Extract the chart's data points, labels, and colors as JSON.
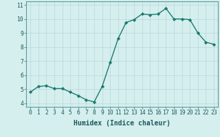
{
  "x": [
    0,
    1,
    2,
    3,
    4,
    5,
    6,
    7,
    8,
    9,
    10,
    11,
    12,
    13,
    14,
    15,
    16,
    17,
    18,
    19,
    20,
    21,
    22,
    23
  ],
  "y": [
    4.8,
    5.2,
    5.25,
    5.05,
    5.05,
    4.8,
    4.55,
    4.25,
    4.1,
    5.2,
    6.9,
    8.6,
    9.75,
    9.95,
    10.35,
    10.3,
    10.35,
    10.75,
    10.0,
    10.0,
    9.95,
    9.0,
    8.35,
    8.2
  ],
  "line_color": "#1a7a6e",
  "marker": "D",
  "marker_size": 2.2,
  "bg_color": "#d5eeee",
  "grid_color": "#b8d8d8",
  "xlabel": "Humidex (Indice chaleur)",
  "xlim": [
    -0.5,
    23.5
  ],
  "ylim": [
    3.75,
    11.25
  ],
  "yticks": [
    4,
    5,
    6,
    7,
    8,
    9,
    10,
    11
  ],
  "xticks": [
    0,
    1,
    2,
    3,
    4,
    5,
    6,
    7,
    8,
    9,
    10,
    11,
    12,
    13,
    14,
    15,
    16,
    17,
    18,
    19,
    20,
    21,
    22,
    23
  ],
  "xtick_labels": [
    "0",
    "1",
    "2",
    "3",
    "4",
    "5",
    "6",
    "7",
    "8",
    "9",
    "10",
    "11",
    "12",
    "13",
    "14",
    "15",
    "16",
    "17",
    "18",
    "19",
    "20",
    "21",
    "22",
    "23"
  ],
  "label_fontsize": 7,
  "tick_fontsize": 5.8
}
